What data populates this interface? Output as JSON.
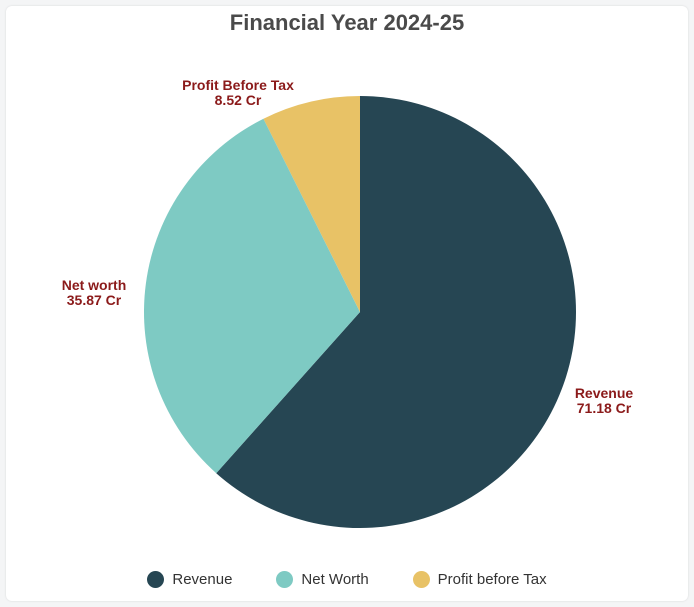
{
  "chart_data": {
    "type": "pie",
    "title": "Financial Year 2024-25",
    "slices": [
      {
        "name": "Revenue",
        "label": "Revenue",
        "value_text": "71.18 Cr",
        "value": 71.18,
        "color": "#264653"
      },
      {
        "name": "Net Worth",
        "label": "Net worth",
        "value_text": "35.87 Cr",
        "value": 35.87,
        "color": "#7ecac3"
      },
      {
        "name": "Profit before Tax",
        "label": "Profit Before Tax",
        "value_text": "8.52 Cr",
        "value": 8.52,
        "color": "#e8c266"
      }
    ],
    "legend": [
      "Revenue",
      "Net Worth",
      "Profit before Tax"
    ],
    "legend_position": "bottom"
  }
}
